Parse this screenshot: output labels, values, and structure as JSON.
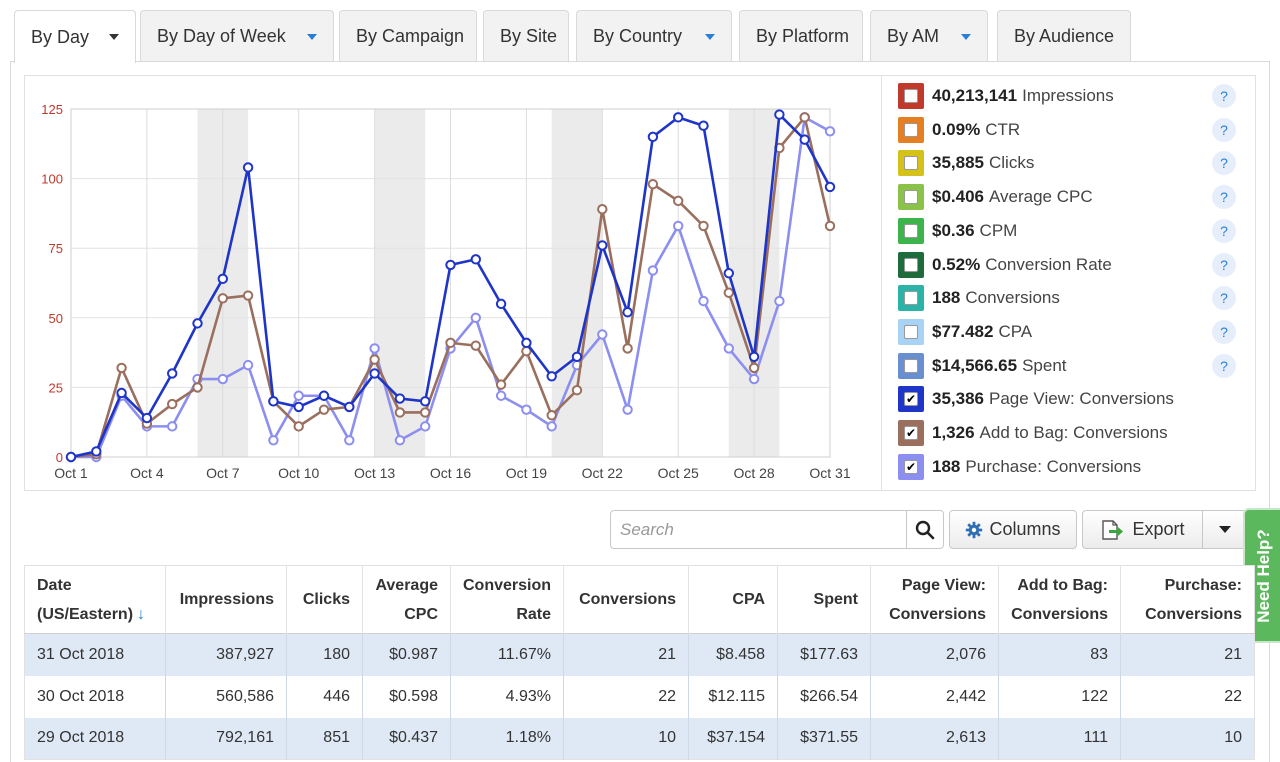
{
  "tabs": [
    {
      "label": "By Day",
      "dropdown": true,
      "active": true
    },
    {
      "label": "By Day of Week",
      "dropdown": true
    },
    {
      "label": "By Campaign",
      "dropdown": false
    },
    {
      "label": "By Site",
      "dropdown": false
    },
    {
      "label": "By Country",
      "dropdown": true
    },
    {
      "label": "By Platform",
      "dropdown": false
    },
    {
      "label": "By AM",
      "dropdown": true
    },
    {
      "label": "By Audience",
      "dropdown": false
    }
  ],
  "chart_data": {
    "type": "line",
    "x": [
      "Oct 1",
      "Oct 2",
      "Oct 3",
      "Oct 4",
      "Oct 5",
      "Oct 6",
      "Oct 7",
      "Oct 8",
      "Oct 9",
      "Oct 10",
      "Oct 11",
      "Oct 12",
      "Oct 13",
      "Oct 14",
      "Oct 15",
      "Oct 16",
      "Oct 17",
      "Oct 18",
      "Oct 19",
      "Oct 20",
      "Oct 21",
      "Oct 22",
      "Oct 23",
      "Oct 24",
      "Oct 25",
      "Oct 26",
      "Oct 27",
      "Oct 28",
      "Oct 29",
      "Oct 30",
      "Oct 31"
    ],
    "x_tick_labels": [
      "Oct 1",
      "Oct 4",
      "Oct 7",
      "Oct 10",
      "Oct 13",
      "Oct 16",
      "Oct 19",
      "Oct 22",
      "Oct 25",
      "Oct 28",
      "Oct 31"
    ],
    "y_tick_labels": [
      "0",
      "25",
      "50",
      "75",
      "100",
      "125"
    ],
    "ylim": [
      0,
      125
    ],
    "weekend_shading": [
      [
        "Oct 6",
        "Oct 7"
      ],
      [
        "Oct 13",
        "Oct 14"
      ],
      [
        "Oct 20",
        "Oct 21"
      ],
      [
        "Oct 27",
        "Oct 28"
      ]
    ],
    "series": [
      {
        "name": "Page View: Conversions",
        "color": "#1f35c8",
        "values": [
          0,
          2,
          23,
          14,
          30,
          48,
          64,
          104,
          20,
          18,
          22,
          18,
          30,
          21,
          20,
          69,
          71,
          55,
          41,
          29,
          36,
          76,
          52,
          115,
          122,
          119,
          66,
          36,
          123,
          114,
          97
        ]
      },
      {
        "name": "Add to Bag: Conversions",
        "color": "#9a6f5d",
        "values": [
          0,
          1,
          32,
          12,
          19,
          25,
          57,
          58,
          20,
          11,
          17,
          18,
          35,
          16,
          16,
          41,
          40,
          26,
          38,
          15,
          24,
          89,
          39,
          98,
          92,
          83,
          59,
          32,
          111,
          122,
          83
        ]
      },
      {
        "name": "Purchase: Conversions",
        "color": "#8c8ef0",
        "values": [
          0,
          0,
          22,
          11,
          11,
          28,
          28,
          33,
          6,
          22,
          22,
          6,
          39,
          6,
          11,
          39,
          50,
          22,
          17,
          11,
          33,
          44,
          17,
          67,
          83,
          56,
          39,
          28,
          56,
          122,
          117
        ]
      }
    ]
  },
  "legend": [
    {
      "value": "40,213,141",
      "label": "Impressions",
      "color": "#c0392b",
      "checked": false,
      "help": true
    },
    {
      "value": "0.09%",
      "label": "CTR",
      "color": "#e67e22",
      "checked": false,
      "help": true
    },
    {
      "value": "35,885",
      "label": "Clicks",
      "color": "#d4c21a",
      "checked": false,
      "help": true
    },
    {
      "value": "$0.406",
      "label": "Average CPC",
      "color": "#8bc34a",
      "checked": false,
      "help": true
    },
    {
      "value": "$0.36",
      "label": "CPM",
      "color": "#3cb44b",
      "checked": false,
      "help": true
    },
    {
      "value": "0.52%",
      "label": "Conversion Rate",
      "color": "#1e6b3c",
      "checked": false,
      "help": true
    },
    {
      "value": "188",
      "label": "Conversions",
      "color": "#2ab3a6",
      "checked": false,
      "help": true
    },
    {
      "value": "$77.482",
      "label": "CPA",
      "color": "#a9d3f5",
      "checked": false,
      "help": true
    },
    {
      "value": "$14,566.65",
      "label": "Spent",
      "color": "#6a8fd0",
      "checked": false,
      "help": true
    },
    {
      "value": "35,386",
      "label": "Page View: Conversions",
      "color": "#1f35c8",
      "checked": true,
      "help": false
    },
    {
      "value": "1,326",
      "label": "Add to Bag: Conversions",
      "color": "#9a6f5d",
      "checked": true,
      "help": false
    },
    {
      "value": "188",
      "label": "Purchase: Conversions",
      "color": "#8c8ef0",
      "checked": true,
      "help": false
    }
  ],
  "help_glyph": "?",
  "check_glyph": "✔",
  "toolbar": {
    "search_placeholder": "Search",
    "columns_label": "Columns",
    "export_label": "Export"
  },
  "need_help_label": "Need Help?",
  "table": {
    "headers": [
      {
        "lines": [
          "Date",
          "(US/Eastern)"
        ],
        "sort": "↓",
        "align": "left"
      },
      {
        "lines": [
          "Impressions"
        ],
        "align": "right"
      },
      {
        "lines": [
          "Clicks"
        ],
        "align": "right"
      },
      {
        "lines": [
          "Average",
          "CPC"
        ],
        "align": "right"
      },
      {
        "lines": [
          "Conversion",
          "Rate"
        ],
        "align": "right"
      },
      {
        "lines": [
          "Conversions"
        ],
        "align": "right"
      },
      {
        "lines": [
          "CPA"
        ],
        "align": "right"
      },
      {
        "lines": [
          "Spent"
        ],
        "align": "right"
      },
      {
        "lines": [
          "Page View:",
          "Conversions"
        ],
        "align": "right"
      },
      {
        "lines": [
          "Add to Bag:",
          "Conversions"
        ],
        "align": "right"
      },
      {
        "lines": [
          "Purchase:",
          "Conversions"
        ],
        "align": "right"
      }
    ],
    "rows": [
      [
        "31 Oct 2018",
        "387,927",
        "180",
        "$0.987",
        "11.67%",
        "21",
        "$8.458",
        "$177.63",
        "2,076",
        "83",
        "21"
      ],
      [
        "30 Oct 2018",
        "560,586",
        "446",
        "$0.598",
        "4.93%",
        "22",
        "$12.115",
        "$266.54",
        "2,442",
        "122",
        "22"
      ],
      [
        "29 Oct 2018",
        "792,161",
        "851",
        "$0.437",
        "1.18%",
        "10",
        "$37.154",
        "$371.55",
        "2,613",
        "111",
        "10"
      ]
    ]
  }
}
